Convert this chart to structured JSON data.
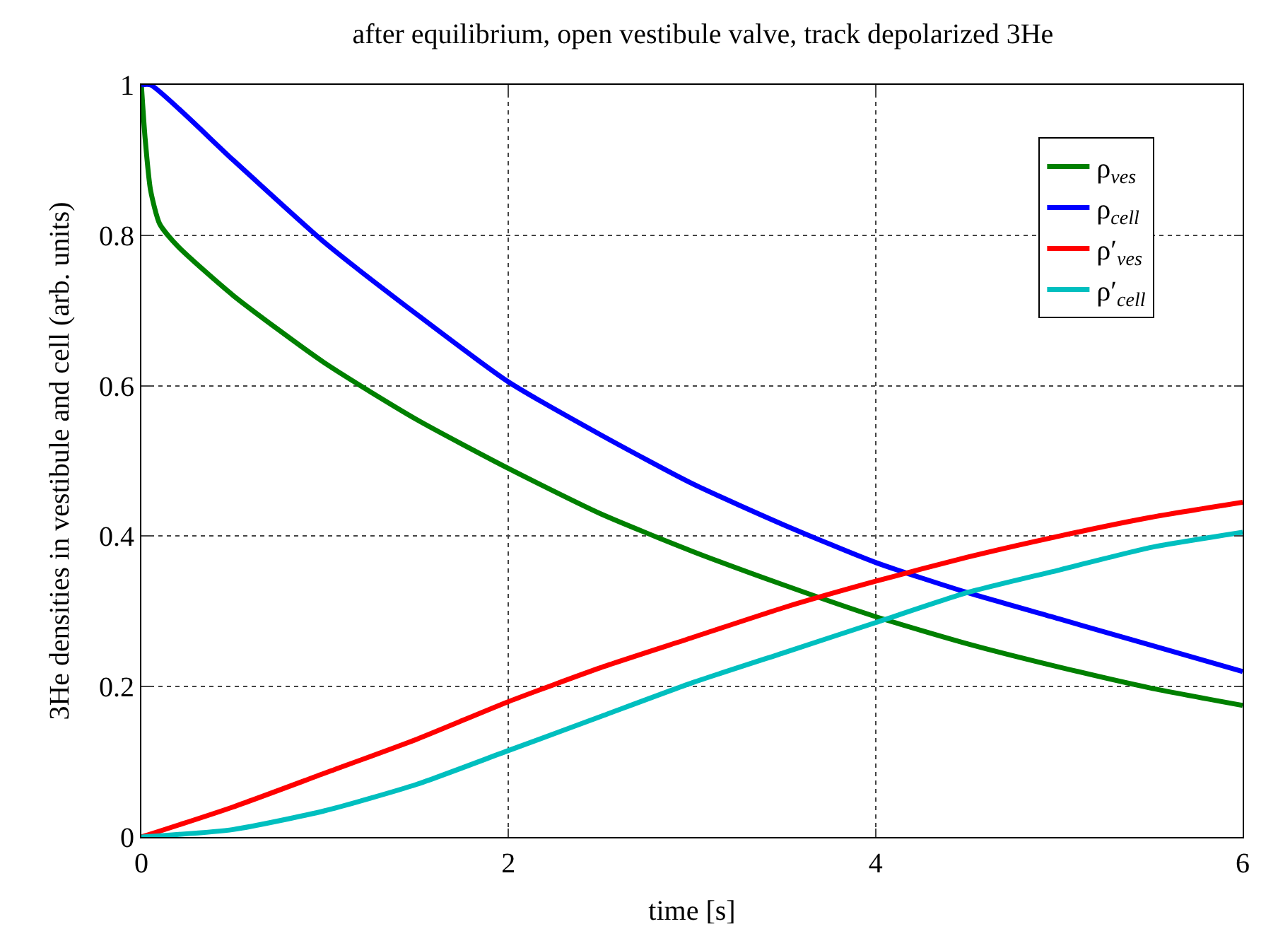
{
  "chart_data": {
    "type": "line",
    "title": "after equilibrium, open vestibule valve, track depolarized 3He",
    "xlabel": "time [s]",
    "ylabel": "3He densities in vestibule and cell (arb. units)",
    "xlim": [
      0,
      6
    ],
    "xticks": [
      0,
      2,
      4,
      6
    ],
    "ylim": [
      0,
      1
    ],
    "yticks": [
      0,
      0.2,
      0.4,
      0.6,
      0.8,
      1
    ],
    "grid": true,
    "legend": "top right",
    "line_style": "solid",
    "marker": "none",
    "series": [
      {
        "name": "ρ$_{ves}$",
        "color": "#008000",
        "x": [
          0,
          0.02,
          0.05,
          0.1,
          0.2,
          0.5,
          1,
          1.5,
          2,
          2.5,
          3,
          3.5,
          4,
          4.5,
          5,
          5.5,
          6
        ],
        "values": [
          1,
          0.93,
          0.86,
          0.815,
          0.785,
          0.72,
          0.63,
          0.555,
          0.49,
          0.43,
          0.38,
          0.335,
          0.293,
          0.257,
          0.226,
          0.198,
          0.175
        ]
      },
      {
        "name": "ρ$_{cell}$",
        "color": "#0000ff",
        "x": [
          0,
          0.05,
          0.5,
          1,
          1.5,
          2,
          2.5,
          3,
          3.5,
          4,
          4.5,
          5,
          5.5,
          6
        ],
        "values": [
          1,
          1,
          0.9,
          0.79,
          0.695,
          0.605,
          0.535,
          0.47,
          0.415,
          0.365,
          0.325,
          0.29,
          0.255,
          0.22
        ]
      },
      {
        "name": "ρ′$_{ves}$",
        "color": "#ff0000",
        "x": [
          0,
          0.5,
          1,
          1.5,
          2,
          2.5,
          3,
          3.5,
          4,
          4.5,
          5,
          5.5,
          6
        ],
        "values": [
          0,
          0.04,
          0.085,
          0.13,
          0.18,
          0.225,
          0.265,
          0.305,
          0.34,
          0.372,
          0.4,
          0.425,
          0.445
        ]
      },
      {
        "name": "ρ′$_{cell}$",
        "color": "#00bfbf",
        "x": [
          0,
          0.5,
          1,
          1.5,
          2,
          2.5,
          3,
          3.5,
          4,
          4.5,
          5,
          5.5,
          6
        ],
        "values": [
          0,
          0.01,
          0.035,
          0.07,
          0.115,
          0.16,
          0.205,
          0.245,
          0.285,
          0.325,
          0.355,
          0.385,
          0.405
        ]
      }
    ]
  }
}
